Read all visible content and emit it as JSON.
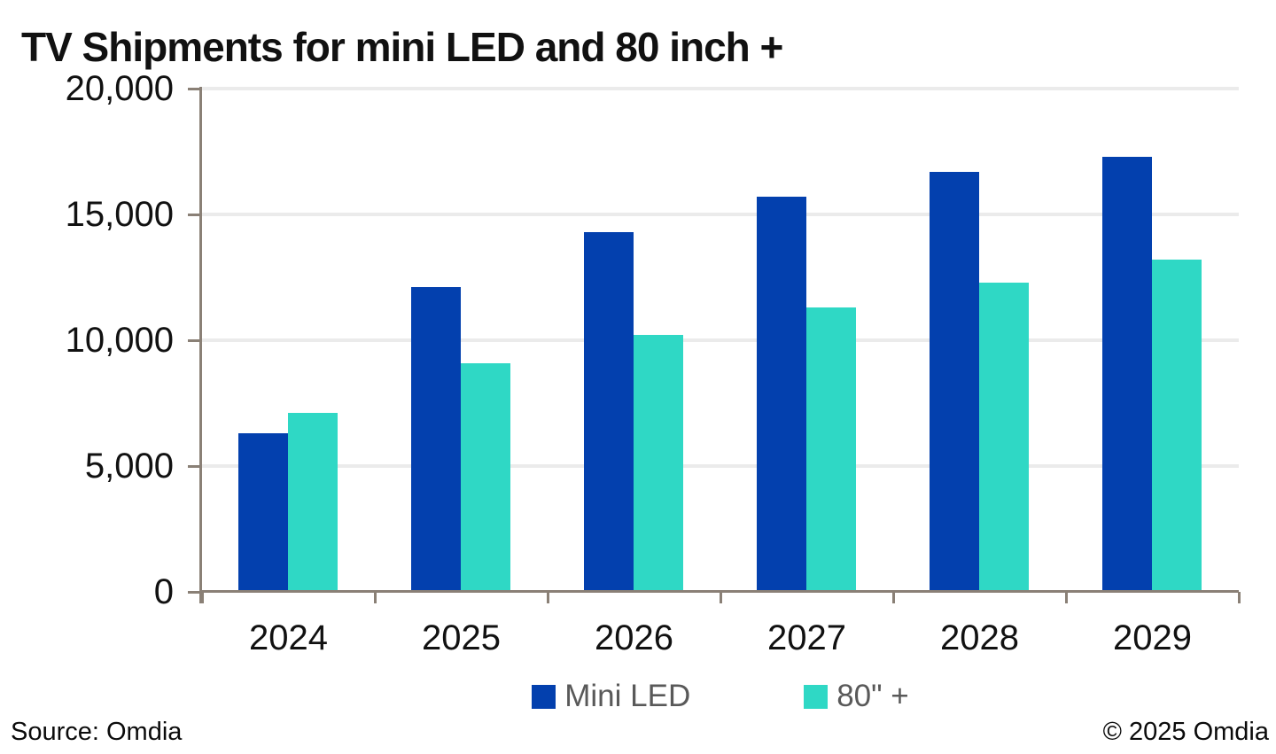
{
  "title": "TV Shipments for mini LED and 80 inch +",
  "source_note": "Source: Omdia",
  "copyright_note": "© 2025 Omdia",
  "colors": {
    "mini_led": "#0340AE",
    "eighty_plus": "#2FD8C5",
    "axis": "#8A8076",
    "gridline": "#EBEBEB",
    "legend_text": "#595959",
    "label_text": "#111111"
  },
  "chart_data": {
    "type": "bar",
    "title": "TV Shipments for mini LED and 80 inch +",
    "categories": [
      "2024",
      "2025",
      "2026",
      "2027",
      "2028",
      "2029"
    ],
    "series": [
      {
        "name": "Mini LED",
        "color": "#0340AE",
        "values": [
          6300,
          12100,
          14300,
          15700,
          16700,
          17300
        ]
      },
      {
        "name": "80\" +",
        "color": "#2FD8C5",
        "values": [
          7100,
          9100,
          10200,
          11300,
          12300,
          13200
        ]
      }
    ],
    "xlabel": "",
    "ylabel": "",
    "ylim": [
      0,
      20000
    ],
    "ytick_interval": 5000,
    "ytick_labels": [
      "0",
      "5,000",
      "10,000",
      "15,000",
      "20,000"
    ],
    "grid": true,
    "legend_position": "bottom"
  }
}
